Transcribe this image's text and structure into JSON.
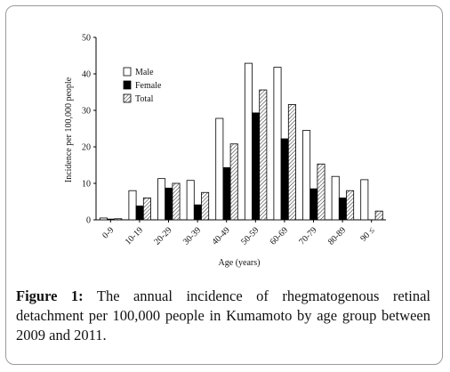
{
  "chart_data": {
    "type": "bar",
    "categories": [
      "0-9",
      "10-19",
      "20-29",
      "30-39",
      "40-49",
      "50-59",
      "60-69",
      "70-79",
      "80-89",
      "90 ≤"
    ],
    "series": [
      {
        "name": "Male",
        "values": [
          0.5,
          8.0,
          11.3,
          10.8,
          27.8,
          42.9,
          41.8,
          24.5,
          11.9,
          11.0
        ],
        "pattern": "white"
      },
      {
        "name": "Female",
        "values": [
          0.2,
          3.8,
          8.7,
          4.1,
          14.3,
          29.3,
          22.2,
          8.5,
          6.0,
          0.0
        ],
        "pattern": "black"
      },
      {
        "name": "Total",
        "values": [
          0.3,
          6.0,
          10.0,
          7.5,
          20.8,
          35.6,
          31.6,
          15.3,
          8.0,
          2.4
        ],
        "pattern": "hatched"
      }
    ],
    "xlabel": "Age (years)",
    "ylabel": "Incidence per 100,000 people",
    "ylim": [
      0,
      50
    ],
    "yticks": [
      0,
      10,
      20,
      30,
      40,
      50
    ],
    "legend_position": "top-left",
    "grid": false
  },
  "caption": {
    "label": "Figure 1:",
    "text": "The annual incidence of rhegmatogenous retinal detachment per 100,000 people in Kumamoto by age group between 2009 and 2011."
  }
}
